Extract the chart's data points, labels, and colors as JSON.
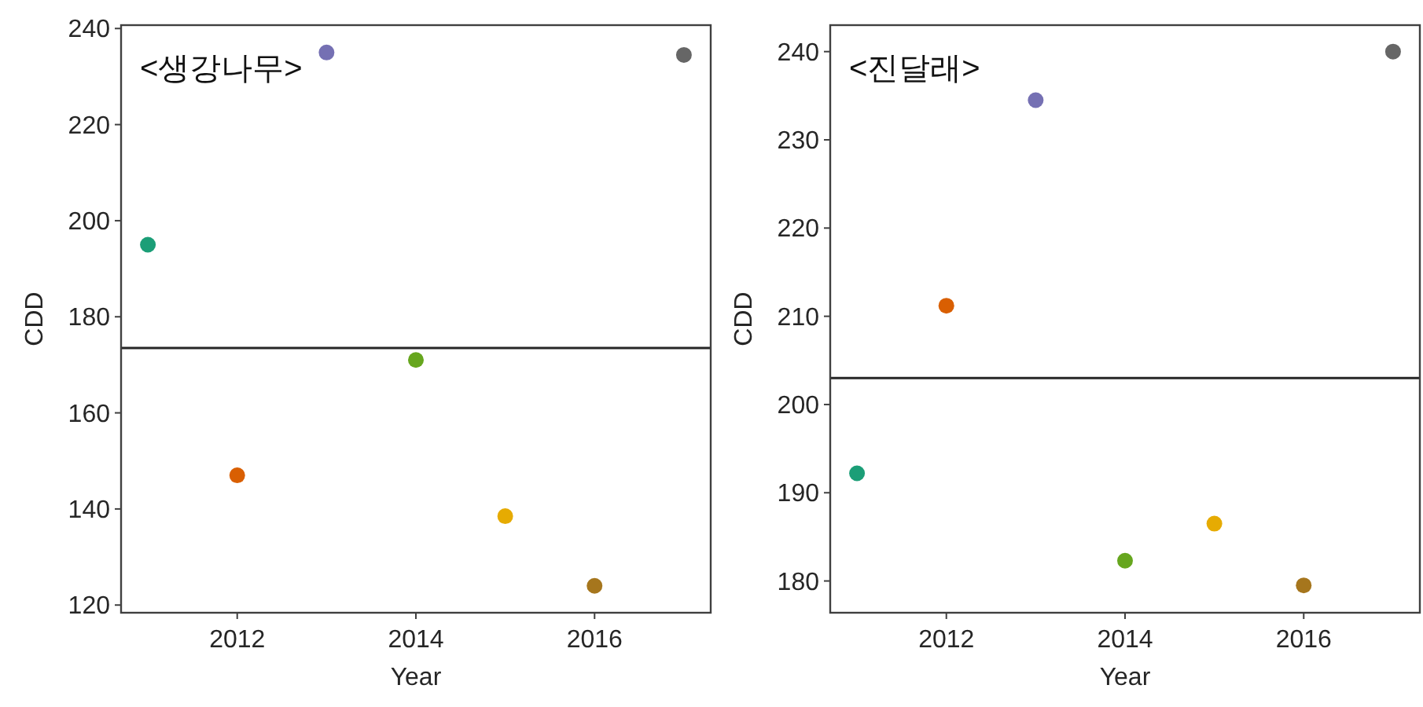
{
  "chart_data": [
    {
      "type": "scatter",
      "annotations": [
        "<생강나무>"
      ],
      "xlabel": "Year",
      "ylabel": "CDD",
      "marker": "circle",
      "x": [
        2011,
        2012,
        2013,
        2014,
        2015,
        2016,
        2017
      ],
      "values": [
        195,
        147,
        235,
        171,
        138.5,
        124,
        234.5
      ],
      "colors": [
        "#1b9e77",
        "#d95f02",
        "#7570b3",
        "#66a61e",
        "#e6ab02",
        "#a6761d",
        "#666666"
      ],
      "xlim": [
        2010.7,
        2017.3
      ],
      "ylim": [
        118.4,
        240.7
      ],
      "xticks": [
        2012,
        2014,
        2016
      ],
      "yticks": [
        120,
        140,
        160,
        180,
        200,
        220,
        240
      ],
      "ref_lines": [
        {
          "axis": "y",
          "value": 173.5,
          "color": "#262626"
        }
      ]
    },
    {
      "type": "scatter",
      "annotations": [
        "<진달래>"
      ],
      "xlabel": "Year",
      "ylabel": "CDD",
      "marker": "circle",
      "x": [
        2011,
        2012,
        2013,
        2014,
        2015,
        2016,
        2017
      ],
      "values": [
        192.2,
        211.2,
        234.5,
        182.3,
        186.5,
        179.5,
        240
      ],
      "colors": [
        "#1b9e77",
        "#d95f02",
        "#7570b3",
        "#66a61e",
        "#e6ab02",
        "#a6761d",
        "#666666"
      ],
      "xlim": [
        2010.7,
        2017.3
      ],
      "ylim": [
        176.4,
        243
      ],
      "xticks": [
        2012,
        2014,
        2016
      ],
      "yticks": [
        180,
        190,
        200,
        210,
        220,
        230,
        240
      ],
      "ref_lines": [
        {
          "axis": "y",
          "value": 203,
          "color": "#262626"
        }
      ]
    }
  ]
}
